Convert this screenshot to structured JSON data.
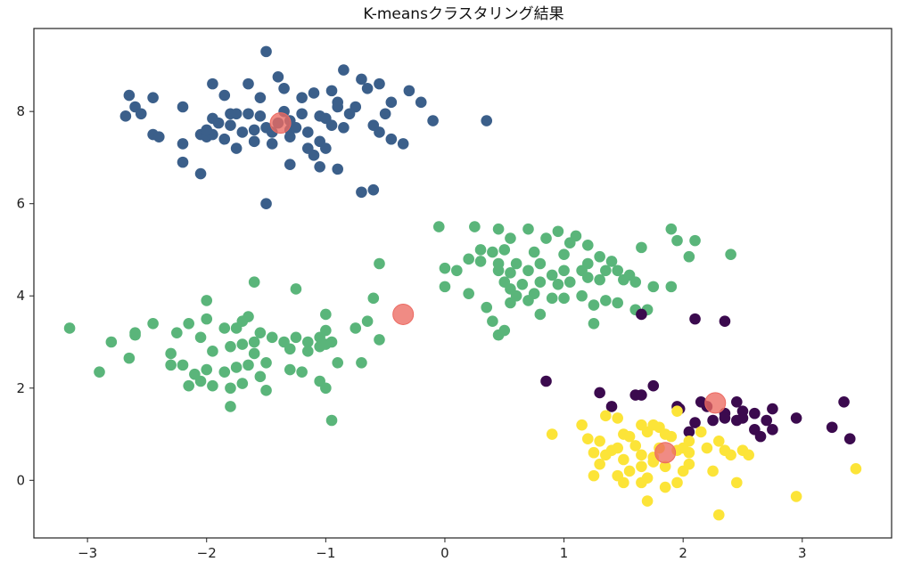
{
  "chart_data": {
    "type": "scatter",
    "title": "K-meansクラスタリング結果",
    "xlabel": "",
    "ylabel": "",
    "xlim": [
      -3.45,
      3.75
    ],
    "ylim": [
      -1.25,
      9.8
    ],
    "grid": false,
    "x_ticks": [
      -3,
      -2,
      -1,
      0,
      1,
      2,
      3
    ],
    "y_ticks": [
      0,
      2,
      4,
      6,
      8
    ],
    "x_tick_labels": [
      "−3",
      "−2",
      "−1",
      "0",
      "1",
      "2",
      "3"
    ],
    "y_tick_labels": [
      "0",
      "2",
      "4",
      "6",
      "8"
    ],
    "series": [
      {
        "color": "#3b5f8a",
        "points": [
          [
            -1.5,
            9.3
          ],
          [
            -0.85,
            8.9
          ],
          [
            -0.3,
            8.45
          ],
          [
            -0.7,
            8.7
          ],
          [
            -0.55,
            8.6
          ],
          [
            -1.4,
            8.75
          ],
          [
            -1.65,
            8.6
          ],
          [
            -1.95,
            8.6
          ],
          [
            -2.65,
            8.35
          ],
          [
            -2.45,
            8.3
          ],
          [
            -1.35,
            8.5
          ],
          [
            -1.1,
            8.4
          ],
          [
            -0.95,
            8.45
          ],
          [
            -0.65,
            8.5
          ],
          [
            -0.45,
            8.2
          ],
          [
            -0.9,
            8.2
          ],
          [
            -1.2,
            8.3
          ],
          [
            -1.55,
            8.3
          ],
          [
            -1.85,
            8.35
          ],
          [
            -2.6,
            8.1
          ],
          [
            -2.2,
            8.1
          ],
          [
            -1.8,
            7.95
          ],
          [
            -1.65,
            7.95
          ],
          [
            -1.55,
            7.9
          ],
          [
            -1.35,
            8.0
          ],
          [
            -1.2,
            7.95
          ],
          [
            -1.05,
            7.9
          ],
          [
            -0.9,
            8.1
          ],
          [
            -0.75,
            8.1
          ],
          [
            -0.5,
            7.95
          ],
          [
            -0.6,
            7.7
          ],
          [
            -0.55,
            7.55
          ],
          [
            -0.45,
            7.4
          ],
          [
            -0.1,
            7.8
          ],
          [
            0.35,
            7.8
          ],
          [
            -0.2,
            8.2
          ],
          [
            -2.68,
            7.9
          ],
          [
            -2.55,
            7.95
          ],
          [
            -1.95,
            7.85
          ],
          [
            -1.9,
            7.75
          ],
          [
            -1.8,
            7.7
          ],
          [
            -1.7,
            7.55
          ],
          [
            -1.6,
            7.6
          ],
          [
            -1.5,
            7.65
          ],
          [
            -1.45,
            7.55
          ],
          [
            -1.3,
            7.6
          ],
          [
            -1.15,
            7.55
          ],
          [
            -1.0,
            7.85
          ],
          [
            -0.95,
            7.7
          ],
          [
            -0.85,
            7.65
          ],
          [
            -2.45,
            7.5
          ],
          [
            -2.4,
            7.45
          ],
          [
            -2.2,
            7.3
          ],
          [
            -2.05,
            7.5
          ],
          [
            -2.0,
            7.45
          ],
          [
            -1.95,
            7.5
          ],
          [
            -1.85,
            7.4
          ],
          [
            -1.75,
            7.2
          ],
          [
            -1.6,
            7.35
          ],
          [
            -1.45,
            7.3
          ],
          [
            -1.3,
            7.45
          ],
          [
            -1.15,
            7.2
          ],
          [
            -1.05,
            7.35
          ],
          [
            -1.0,
            7.2
          ],
          [
            -0.35,
            7.3
          ],
          [
            -2.2,
            6.9
          ],
          [
            -2.05,
            6.65
          ],
          [
            -1.3,
            6.85
          ],
          [
            -1.05,
            6.8
          ],
          [
            -0.9,
            6.75
          ],
          [
            -0.7,
            6.25
          ],
          [
            -0.6,
            6.3
          ],
          [
            -1.5,
            6.0
          ],
          [
            -1.75,
            7.95
          ],
          [
            -1.4,
            7.75
          ],
          [
            -1.25,
            7.65
          ],
          [
            -0.8,
            7.95
          ],
          [
            -1.3,
            7.8
          ],
          [
            -2.0,
            7.6
          ],
          [
            -1.1,
            7.05
          ]
        ]
      },
      {
        "color": "#5ab57a",
        "points": [
          [
            -0.05,
            5.5
          ],
          [
            0.25,
            5.5
          ],
          [
            0.45,
            5.45
          ],
          [
            0.7,
            5.45
          ],
          [
            0.95,
            5.4
          ],
          [
            1.1,
            5.3
          ],
          [
            1.9,
            5.45
          ],
          [
            2.1,
            5.2
          ],
          [
            1.95,
            5.2
          ],
          [
            0.55,
            5.25
          ],
          [
            0.85,
            5.25
          ],
          [
            1.05,
            5.15
          ],
          [
            1.2,
            5.1
          ],
          [
            1.65,
            5.05
          ],
          [
            2.05,
            4.85
          ],
          [
            2.4,
            4.9
          ],
          [
            0.3,
            5.0
          ],
          [
            0.4,
            4.95
          ],
          [
            0.5,
            5.0
          ],
          [
            0.75,
            4.95
          ],
          [
            1.0,
            4.9
          ],
          [
            1.3,
            4.85
          ],
          [
            0.2,
            4.8
          ],
          [
            0.3,
            4.75
          ],
          [
            0.45,
            4.7
          ],
          [
            0.6,
            4.7
          ],
          [
            0.8,
            4.7
          ],
          [
            1.2,
            4.7
          ],
          [
            1.4,
            4.75
          ],
          [
            0.0,
            4.6
          ],
          [
            0.1,
            4.55
          ],
          [
            0.45,
            4.55
          ],
          [
            0.55,
            4.5
          ],
          [
            0.7,
            4.55
          ],
          [
            0.9,
            4.45
          ],
          [
            1.0,
            4.55
          ],
          [
            1.15,
            4.55
          ],
          [
            1.35,
            4.55
          ],
          [
            1.45,
            4.55
          ],
          [
            1.55,
            4.45
          ],
          [
            0.5,
            4.3
          ],
          [
            0.65,
            4.25
          ],
          [
            0.8,
            4.3
          ],
          [
            0.95,
            4.25
          ],
          [
            1.05,
            4.3
          ],
          [
            1.2,
            4.4
          ],
          [
            1.3,
            4.35
          ],
          [
            1.5,
            4.35
          ],
          [
            1.6,
            4.3
          ],
          [
            1.75,
            4.2
          ],
          [
            1.9,
            4.2
          ],
          [
            0.0,
            4.2
          ],
          [
            0.2,
            4.05
          ],
          [
            0.55,
            4.15
          ],
          [
            0.6,
            4.0
          ],
          [
            0.75,
            4.05
          ],
          [
            0.9,
            3.95
          ],
          [
            1.15,
            4.0
          ],
          [
            1.25,
            3.8
          ],
          [
            1.45,
            3.85
          ],
          [
            0.7,
            3.9
          ],
          [
            1.0,
            3.95
          ],
          [
            1.35,
            3.9
          ],
          [
            1.6,
            3.7
          ],
          [
            0.35,
            3.75
          ],
          [
            0.55,
            3.85
          ],
          [
            0.8,
            3.6
          ],
          [
            0.4,
            3.45
          ],
          [
            0.5,
            3.25
          ],
          [
            0.45,
            3.15
          ],
          [
            1.25,
            3.4
          ],
          [
            1.7,
            3.7
          ],
          [
            -0.55,
            4.7
          ],
          [
            -0.6,
            3.95
          ],
          [
            -0.65,
            3.45
          ],
          [
            -0.7,
            2.55
          ],
          [
            -0.75,
            3.3
          ],
          [
            -0.55,
            3.05
          ],
          [
            -1.0,
            3.6
          ],
          [
            -1.0,
            3.25
          ],
          [
            -1.05,
            3.1
          ],
          [
            -1.15,
            3.0
          ],
          [
            -1.25,
            3.1
          ],
          [
            -1.35,
            3.0
          ],
          [
            -1.45,
            3.1
          ],
          [
            -1.3,
            2.85
          ],
          [
            -1.15,
            2.8
          ],
          [
            -1.05,
            2.9
          ],
          [
            -1.0,
            2.95
          ],
          [
            -0.95,
            3.0
          ],
          [
            -0.9,
            2.55
          ],
          [
            -1.25,
            4.15
          ],
          [
            -1.6,
            4.3
          ],
          [
            -1.65,
            3.55
          ],
          [
            -1.7,
            3.45
          ],
          [
            -1.55,
            3.2
          ],
          [
            -1.6,
            3.0
          ],
          [
            -1.7,
            2.95
          ],
          [
            -1.8,
            2.9
          ],
          [
            -1.95,
            2.8
          ],
          [
            -2.05,
            3.1
          ],
          [
            -2.15,
            3.4
          ],
          [
            -2.0,
            3.5
          ],
          [
            -2.0,
            3.9
          ],
          [
            -1.85,
            3.3
          ],
          [
            -1.75,
            3.3
          ],
          [
            -1.6,
            2.75
          ],
          [
            -1.65,
            2.5
          ],
          [
            -1.75,
            2.45
          ],
          [
            -1.85,
            2.35
          ],
          [
            -2.0,
            2.4
          ],
          [
            -2.1,
            2.3
          ],
          [
            -2.2,
            2.5
          ],
          [
            -2.3,
            2.75
          ],
          [
            -1.5,
            2.55
          ],
          [
            -1.55,
            2.25
          ],
          [
            -1.7,
            2.1
          ],
          [
            -1.8,
            2.0
          ],
          [
            -1.95,
            2.05
          ],
          [
            -2.05,
            2.15
          ],
          [
            -2.15,
            2.05
          ],
          [
            -1.5,
            1.95
          ],
          [
            -1.8,
            1.6
          ],
          [
            -1.3,
            2.4
          ],
          [
            -1.2,
            2.35
          ],
          [
            -1.05,
            2.15
          ],
          [
            -1.0,
            2.0
          ],
          [
            -0.95,
            1.3
          ],
          [
            -2.45,
            3.4
          ],
          [
            -2.6,
            3.2
          ],
          [
            -2.6,
            3.15
          ],
          [
            -2.8,
            3.0
          ],
          [
            -3.15,
            3.3
          ],
          [
            -2.9,
            2.35
          ],
          [
            -2.65,
            2.65
          ],
          [
            -2.3,
            2.5
          ],
          [
            -2.25,
            3.2
          ]
        ]
      },
      {
        "color": "#3b0a4e",
        "points": [
          [
            0.85,
            2.15
          ],
          [
            1.3,
            1.9
          ],
          [
            1.6,
            1.85
          ],
          [
            1.65,
            1.85
          ],
          [
            1.75,
            2.05
          ],
          [
            1.95,
            1.6
          ],
          [
            1.97,
            1.55
          ],
          [
            2.15,
            1.7
          ],
          [
            2.2,
            1.6
          ],
          [
            2.35,
            1.45
          ],
          [
            2.45,
            1.7
          ],
          [
            2.5,
            1.5
          ],
          [
            2.6,
            1.45
          ],
          [
            2.75,
            1.55
          ],
          [
            2.45,
            1.3
          ],
          [
            2.35,
            1.35
          ],
          [
            2.25,
            1.3
          ],
          [
            2.1,
            1.25
          ],
          [
            2.5,
            1.35
          ],
          [
            2.6,
            1.1
          ],
          [
            2.65,
            0.95
          ],
          [
            2.7,
            1.3
          ],
          [
            2.75,
            1.1
          ],
          [
            2.95,
            1.35
          ],
          [
            3.25,
            1.15
          ],
          [
            3.35,
            1.7
          ],
          [
            3.4,
            0.9
          ],
          [
            1.65,
            3.6
          ],
          [
            2.1,
            3.5
          ],
          [
            2.35,
            3.45
          ],
          [
            1.4,
            1.6
          ],
          [
            2.05,
            1.05
          ]
        ]
      },
      {
        "color": "#fce438",
        "points": [
          [
            0.9,
            1.0
          ],
          [
            1.15,
            1.2
          ],
          [
            1.35,
            1.4
          ],
          [
            1.45,
            1.35
          ],
          [
            1.5,
            1.0
          ],
          [
            1.65,
            1.2
          ],
          [
            1.75,
            1.2
          ],
          [
            1.8,
            1.15
          ],
          [
            1.85,
            1.0
          ],
          [
            2.05,
            0.85
          ],
          [
            2.15,
            1.05
          ],
          [
            2.3,
            0.85
          ],
          [
            2.35,
            0.65
          ],
          [
            2.5,
            0.65
          ],
          [
            2.55,
            0.55
          ],
          [
            2.4,
            0.55
          ],
          [
            2.2,
            0.7
          ],
          [
            2.05,
            0.6
          ],
          [
            1.95,
            0.65
          ],
          [
            1.75,
            0.5
          ],
          [
            1.6,
            0.75
          ],
          [
            1.45,
            0.7
          ],
          [
            1.35,
            0.55
          ],
          [
            1.25,
            0.6
          ],
          [
            1.2,
            0.9
          ],
          [
            1.3,
            0.85
          ],
          [
            1.55,
            0.95
          ],
          [
            1.7,
            1.05
          ],
          [
            1.9,
            0.95
          ],
          [
            2.0,
            0.7
          ],
          [
            1.8,
            0.7
          ],
          [
            1.65,
            0.55
          ],
          [
            1.5,
            0.45
          ],
          [
            1.4,
            0.65
          ],
          [
            1.3,
            0.35
          ],
          [
            1.55,
            0.2
          ],
          [
            1.7,
            0.05
          ],
          [
            1.85,
            0.3
          ],
          [
            2.0,
            0.2
          ],
          [
            2.05,
            0.35
          ],
          [
            1.95,
            -0.05
          ],
          [
            1.75,
            0.4
          ],
          [
            1.65,
            0.3
          ],
          [
            1.45,
            0.1
          ],
          [
            1.25,
            0.1
          ],
          [
            1.5,
            -0.05
          ],
          [
            1.65,
            -0.05
          ],
          [
            1.85,
            -0.15
          ],
          [
            1.7,
            -0.45
          ],
          [
            2.3,
            -0.75
          ],
          [
            2.45,
            -0.05
          ],
          [
            2.95,
            -0.35
          ],
          [
            3.45,
            0.25
          ],
          [
            1.95,
            1.5
          ],
          [
            2.25,
            0.2
          ]
        ]
      }
    ],
    "centroids": {
      "color": "#ec6a62",
      "points": [
        [
          -1.38,
          7.75
        ],
        [
          -0.35,
          3.6
        ],
        [
          2.27,
          1.68
        ],
        [
          1.85,
          0.6
        ]
      ]
    }
  }
}
